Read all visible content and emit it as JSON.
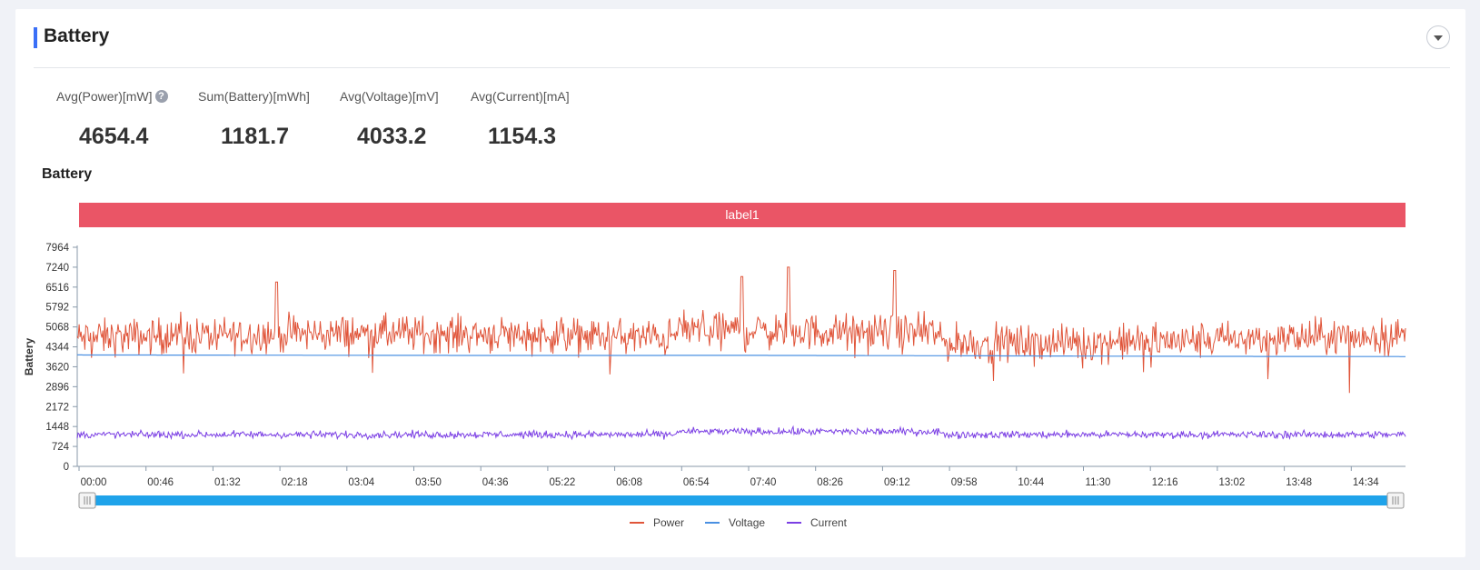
{
  "section": {
    "title": "Battery"
  },
  "metrics": [
    {
      "label": "Avg(Power)[mW]",
      "value": "4654.4",
      "help": "?"
    },
    {
      "label": "Sum(Battery)[mWh]",
      "value": "1181.7"
    },
    {
      "label": "Avg(Voltage)[mV]",
      "value": "4033.2"
    },
    {
      "label": "Avg(Current)[mA]",
      "value": "1154.3"
    }
  ],
  "chart_data": {
    "type": "line",
    "title": "Battery",
    "ylabel": "Battery",
    "xlabel": "",
    "band_label": "label1",
    "ylim": [
      0,
      7964
    ],
    "y_ticks": [
      0,
      724,
      1448,
      2172,
      2896,
      3620,
      4344,
      5068,
      5792,
      6516,
      7240,
      7964
    ],
    "x_ticks": [
      "00:00",
      "00:46",
      "01:32",
      "02:18",
      "03:04",
      "03:50",
      "04:36",
      "05:22",
      "06:08",
      "06:54",
      "07:40",
      "08:26",
      "09:12",
      "09:58",
      "10:44",
      "11:30",
      "12:16",
      "13:02",
      "13:48",
      "14:34"
    ],
    "legend": "bottom",
    "series": [
      {
        "name": "Power",
        "color": "#e0553a",
        "mean": 4654.4,
        "spread": 700,
        "peaks": [
          [
            0.535,
            7240
          ],
          [
            0.615,
            7120
          ],
          [
            0.5,
            6900
          ],
          [
            0.15,
            6700
          ]
        ]
      },
      {
        "name": "Voltage",
        "color": "#4a90e2",
        "values": [
          4050,
          4040,
          4030,
          4035,
          4020,
          4000,
          3990
        ]
      },
      {
        "name": "Current",
        "color": "#7b3fe4",
        "mean": 1154.3,
        "spread": 150
      }
    ],
    "colors": {
      "band": "#ea5566",
      "slider": "#1fa3ea",
      "axis": "#8899aa"
    }
  }
}
